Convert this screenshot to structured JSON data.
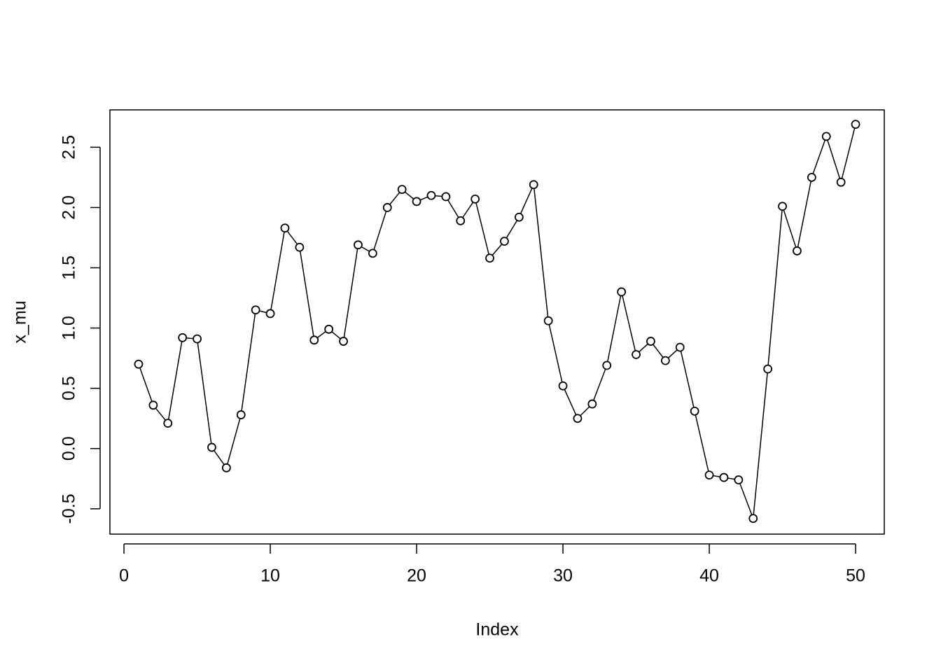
{
  "chart_data": {
    "type": "line",
    "xlabel": "Index",
    "ylabel": "x_mu",
    "x": [
      1,
      2,
      3,
      4,
      5,
      6,
      7,
      8,
      9,
      10,
      11,
      12,
      13,
      14,
      15,
      16,
      17,
      18,
      19,
      20,
      21,
      22,
      23,
      24,
      25,
      26,
      27,
      28,
      29,
      30,
      31,
      32,
      33,
      34,
      35,
      36,
      37,
      38,
      39,
      40,
      41,
      42,
      43,
      44,
      45,
      46,
      47,
      48,
      49,
      50
    ],
    "values": [
      0.7,
      0.36,
      0.21,
      0.92,
      0.91,
      0.01,
      -0.16,
      0.28,
      1.15,
      1.12,
      1.83,
      1.67,
      0.9,
      0.99,
      0.89,
      1.69,
      1.62,
      2.0,
      2.15,
      2.05,
      2.1,
      2.09,
      1.89,
      2.07,
      1.58,
      1.72,
      1.92,
      2.19,
      1.06,
      0.52,
      0.25,
      0.37,
      0.69,
      1.3,
      0.78,
      0.89,
      0.73,
      0.84,
      0.31,
      -0.22,
      -0.24,
      -0.26,
      -0.58,
      0.66,
      2.01,
      1.64,
      2.25,
      2.59,
      2.21,
      2.69
    ],
    "color": "#000000",
    "xlim": [
      -0.96,
      51.96
    ],
    "ylim": [
      -0.71,
      2.81
    ],
    "xticks": [
      0,
      10,
      20,
      30,
      40,
      50
    ],
    "yticks": [
      -0.5,
      {
        "value": 0,
        "label": "0.0"
      },
      0.5,
      {
        "value": 1,
        "label": "1.0"
      },
      1.5,
      {
        "value": 2,
        "label": "2.0"
      },
      2.5
    ]
  }
}
